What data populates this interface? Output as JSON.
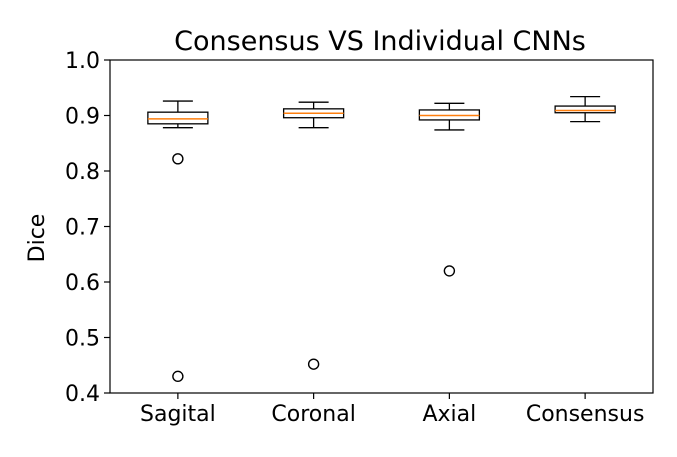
{
  "chart_data": {
    "type": "box",
    "title": "Consensus VS Individual CNNs",
    "xlabel": "",
    "ylabel": "Dice",
    "ylim": [
      0.4,
      1.0
    ],
    "yticks": [
      "0.4",
      "0.5",
      "0.6",
      "0.7",
      "0.8",
      "0.9",
      "1.0"
    ],
    "categories": [
      "Sagital",
      "Coronal",
      "Axial",
      "Consensus"
    ],
    "boxes": [
      {
        "category": "Sagital",
        "whisker_low": 0.878,
        "q1": 0.885,
        "median": 0.894,
        "q3": 0.906,
        "whisker_high": 0.926,
        "outliers": [
          0.822,
          0.43
        ]
      },
      {
        "category": "Coronal",
        "whisker_low": 0.878,
        "q1": 0.896,
        "median": 0.904,
        "q3": 0.912,
        "whisker_high": 0.924,
        "outliers": [
          0.452
        ]
      },
      {
        "category": "Axial",
        "whisker_low": 0.874,
        "q1": 0.892,
        "median": 0.9,
        "q3": 0.91,
        "whisker_high": 0.922,
        "outliers": [
          0.62
        ]
      },
      {
        "category": "Consensus",
        "whisker_low": 0.889,
        "q1": 0.905,
        "median": 0.909,
        "q3": 0.917,
        "whisker_high": 0.934,
        "outliers": []
      }
    ],
    "grid": false,
    "colors": {
      "box": "#000000",
      "median": "#ff7f0e",
      "outlier": "#000000"
    }
  }
}
